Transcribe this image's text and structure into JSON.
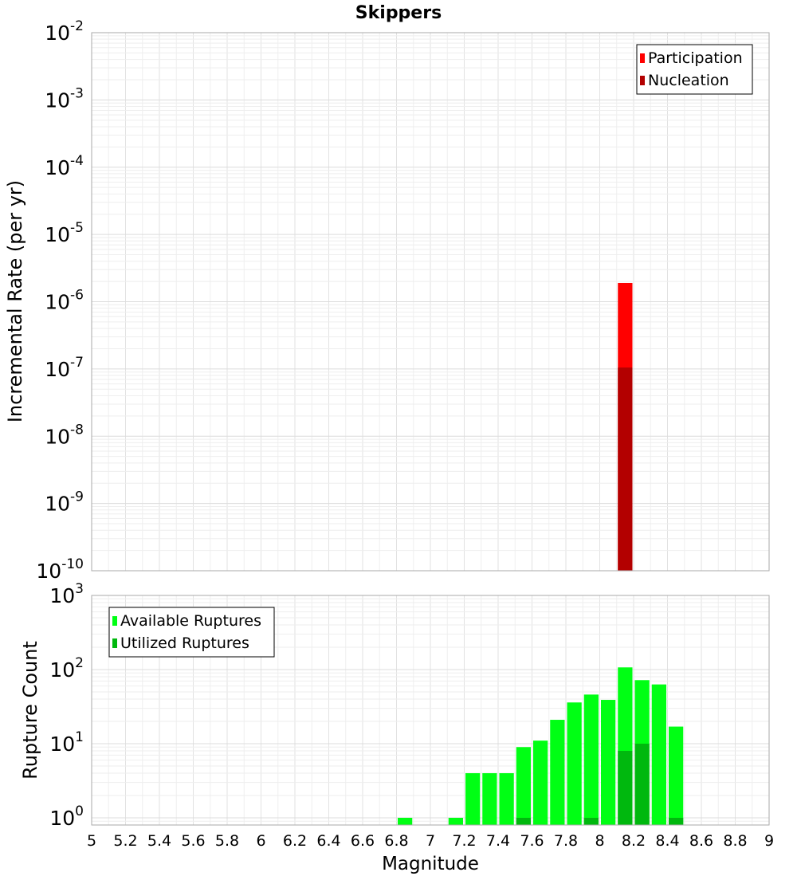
{
  "chart_data": [
    {
      "type": "bar",
      "title": "Skippers",
      "xlabel": "",
      "ylabel": "Incremental Rate (per yr)",
      "xlim": [
        5,
        9
      ],
      "ylim": [
        1e-10,
        0.01
      ],
      "yscale": "log",
      "grid": true,
      "legend_position": "top-right",
      "bin_width": 0.1,
      "y_tick_exponents": [
        "-2",
        "-3",
        "-4",
        "-5",
        "-6",
        "-7",
        "-8",
        "-9",
        "-10"
      ],
      "series": [
        {
          "name": "Participation",
          "color": "#ff0000",
          "x": [
            8.15
          ],
          "values": [
            1.9e-06
          ]
        },
        {
          "name": "Nucleation",
          "color": "#b30000",
          "x": [
            8.15
          ],
          "values": [
            1.05e-07
          ]
        }
      ]
    },
    {
      "type": "bar",
      "title": "",
      "xlabel": "Magnitude",
      "ylabel": "Rupture Count",
      "xlim": [
        5,
        9
      ],
      "ylim": [
        0.8,
        1000
      ],
      "yscale": "log",
      "grid": true,
      "legend_position": "top-left",
      "bin_width": 0.1,
      "x_ticks": [
        "5",
        "5.2",
        "5.4",
        "5.6",
        "5.8",
        "6",
        "6.2",
        "6.4",
        "6.6",
        "6.8",
        "7",
        "7.2",
        "7.4",
        "7.6",
        "7.8",
        "8",
        "8.2",
        "8.4",
        "8.6",
        "8.8",
        "9"
      ],
      "y_tick_exponents": [
        "3",
        "2",
        "1",
        "0"
      ],
      "series": [
        {
          "name": "Available Ruptures",
          "color": "#00ff14",
          "x": [
            6.85,
            7.15,
            7.25,
            7.35,
            7.45,
            7.55,
            7.65,
            7.75,
            7.85,
            7.95,
            8.05,
            8.15,
            8.25,
            8.35,
            8.45
          ],
          "values": [
            1,
            1,
            4,
            4,
            4,
            9,
            11,
            21,
            36,
            46,
            39,
            107,
            72,
            63,
            17
          ]
        },
        {
          "name": "Utilized Ruptures",
          "color": "#00b80e",
          "x": [
            7.55,
            7.95,
            8.15,
            8.25,
            8.45
          ],
          "values": [
            1,
            1,
            8,
            10,
            1
          ]
        }
      ]
    }
  ]
}
